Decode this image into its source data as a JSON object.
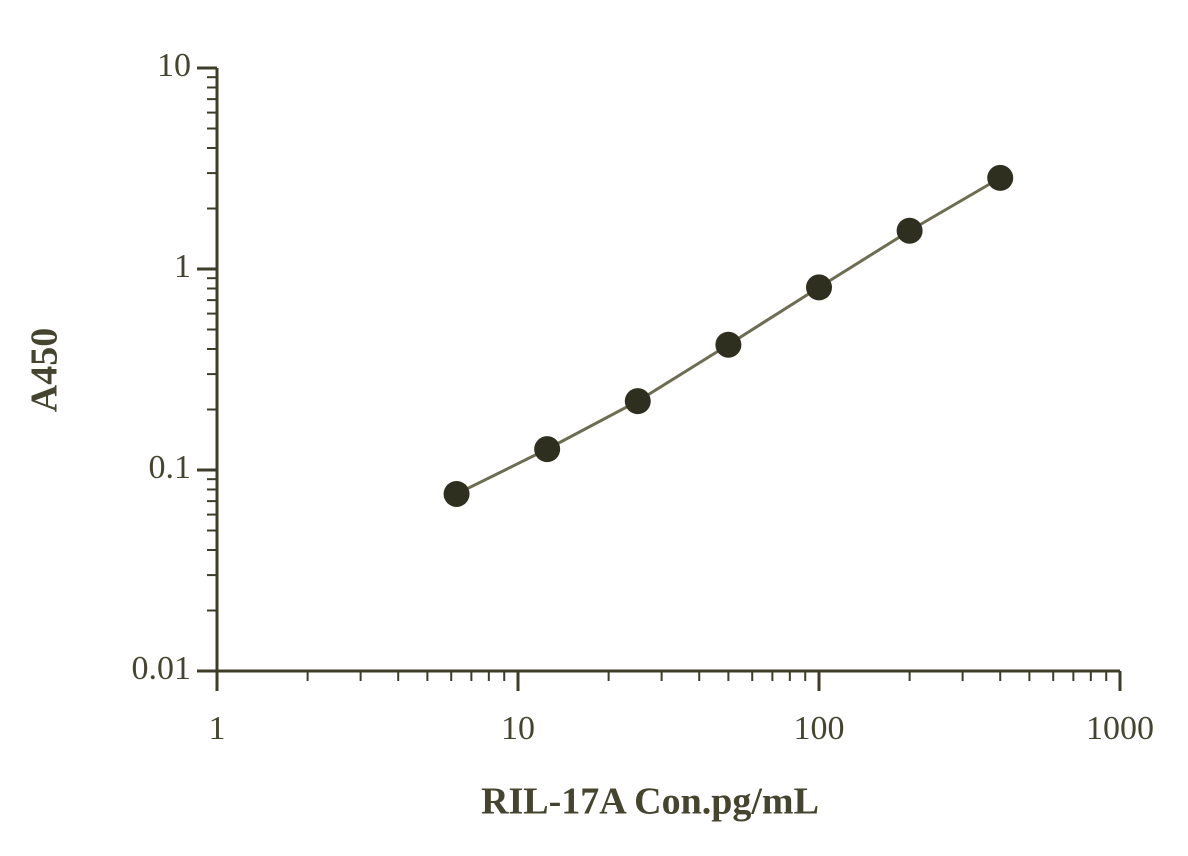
{
  "chart_data": {
    "type": "scatter",
    "x_label": "RIL-17A Con.pg/mL",
    "y_label": "A450",
    "x": [
      6.25,
      12.5,
      25,
      50,
      100,
      200,
      400
    ],
    "values": [
      0.076,
      0.127,
      0.22,
      0.42,
      0.81,
      1.55,
      2.84
    ],
    "color": "#2f2f1f",
    "line_color": "#6d6d52",
    "xlim": [
      1,
      1000
    ],
    "ylim": [
      0.01,
      10
    ],
    "xticks": [
      1,
      10,
      100,
      1000
    ],
    "yticks": [
      0.01,
      0.1,
      1,
      10
    ],
    "log_x": true,
    "log_y": true,
    "grid": false
  }
}
